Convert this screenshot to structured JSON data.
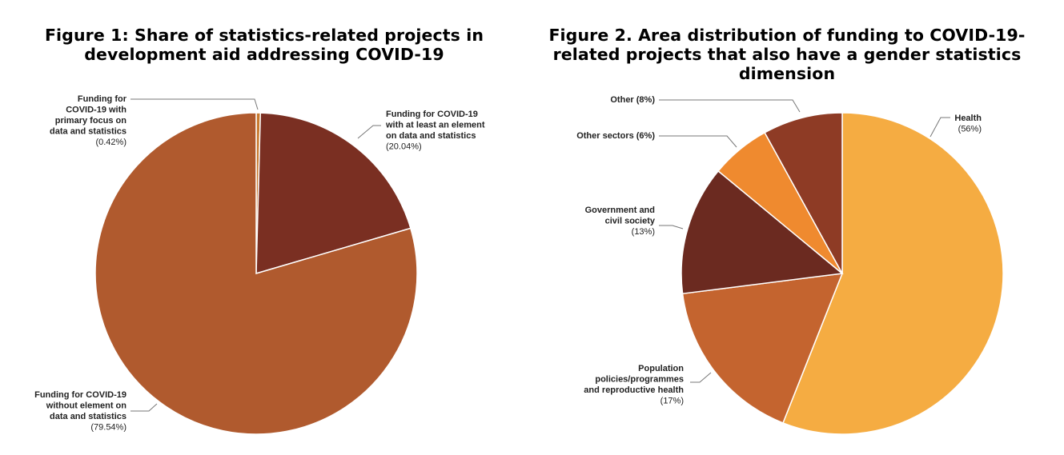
{
  "chart_data": [
    {
      "type": "pie",
      "title": "Figure 1: Share of statistics-related projects in development aid addressing COVID-19",
      "slices": [
        {
          "label_lines": [
            "Funding for",
            "COVID-19 with",
            "primary focus on",
            "data and statistics"
          ],
          "pct_label": "(0.42%)",
          "value": 0.42,
          "color": "#C97A2E"
        },
        {
          "label_lines": [
            "Funding for COVID-19",
            "with at least an element",
            "on data and statistics"
          ],
          "pct_label": "(20.04%)",
          "value": 20.04,
          "color": "#7A2F22"
        },
        {
          "label_lines": [
            "Funding for COVID-19",
            "without element on",
            "data and statistics"
          ],
          "pct_label": "(79.54%)",
          "value": 79.54,
          "color": "#B05A2E"
        }
      ]
    },
    {
      "type": "pie",
      "title": "Figure 2. Area distribution of funding to COVID-19-related projects that also have a gender statistics dimension",
      "slices": [
        {
          "label_lines": [
            "Health"
          ],
          "pct_label": "(56%)",
          "value": 56,
          "color": "#F5AC42"
        },
        {
          "label_lines": [
            "Population",
            "policies/programmes",
            "and reproductive health"
          ],
          "pct_label": "(17%)",
          "value": 17,
          "color": "#C4642F"
        },
        {
          "label_lines": [
            "Government and",
            "civil society"
          ],
          "pct_label": "(13%)",
          "value": 13,
          "color": "#6B2A20"
        },
        {
          "label_lines": [
            "Other sectors (6%)"
          ],
          "pct_label": "",
          "value": 6,
          "color": "#EF8A2F"
        },
        {
          "label_lines": [
            "Other (8%)"
          ],
          "pct_label": "",
          "value": 8,
          "color": "#8E3B25"
        }
      ]
    }
  ]
}
